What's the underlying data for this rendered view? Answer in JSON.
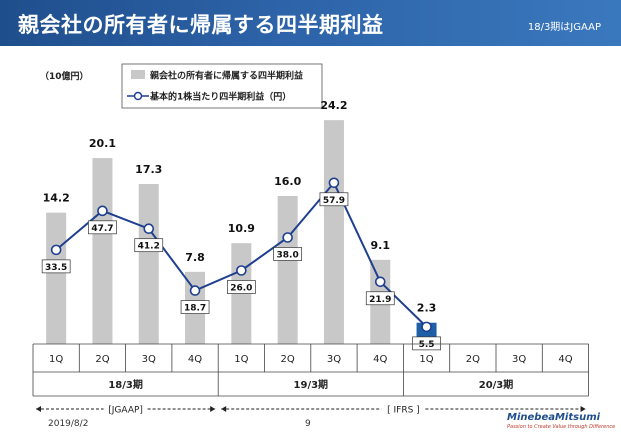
{
  "header": {
    "title": "親会社の所有者に帰属する四半期利益",
    "note": "18/3期はJGAAP"
  },
  "footer": {
    "date": "2019/8/2",
    "page": "9",
    "logo_text": "MinebeaMitsumi",
    "logo_tagline": "Passion to Create Value through Difference"
  },
  "colors": {
    "bar": "#c8c8c8",
    "bar_highlight": "#1f5fa8",
    "line": "#1f3f8f",
    "header": "#1f4e8c"
  },
  "chart_data": {
    "type": "bar",
    "unit_label": "（10億円）",
    "categories": [
      "1Q",
      "2Q",
      "3Q",
      "4Q",
      "1Q",
      "2Q",
      "3Q",
      "4Q",
      "1Q",
      "2Q",
      "3Q",
      "4Q"
    ],
    "groups": [
      {
        "label": "18/3期",
        "start": 0,
        "end": 3
      },
      {
        "label": "19/3期",
        "start": 4,
        "end": 7
      },
      {
        "label": "20/3期",
        "start": 8,
        "end": 11
      }
    ],
    "standards": [
      {
        "label": "[JGAAP]",
        "start": 0,
        "end": 3
      },
      {
        "label": "[ IFRS ]",
        "start": 4,
        "end": 11
      }
    ],
    "series": [
      {
        "name": "親会社の所有者に帰属する四半期利益",
        "kind": "bar",
        "values": [
          14.2,
          20.1,
          17.3,
          7.8,
          10.9,
          16.0,
          24.2,
          9.1,
          2.3,
          null,
          null,
          null
        ],
        "labels": [
          "14.2",
          "20.1",
          "17.3",
          "7.8",
          "10.9",
          "16.0",
          "24.2",
          "9.1",
          "2.3",
          "",
          "",
          ""
        ]
      },
      {
        "name": "基本的1株当たり四半期利益（円）",
        "kind": "line",
        "values": [
          33.5,
          47.7,
          41.2,
          18.7,
          26.0,
          38.0,
          57.9,
          21.9,
          5.5,
          null,
          null,
          null
        ],
        "labels": [
          "33.5",
          "47.7",
          "41.2",
          "18.7",
          "26.0",
          "38.0",
          "57.9",
          "21.9",
          "5.5",
          "",
          "",
          ""
        ]
      }
    ],
    "highlight_index": 8,
    "legend_position": "top-center"
  }
}
